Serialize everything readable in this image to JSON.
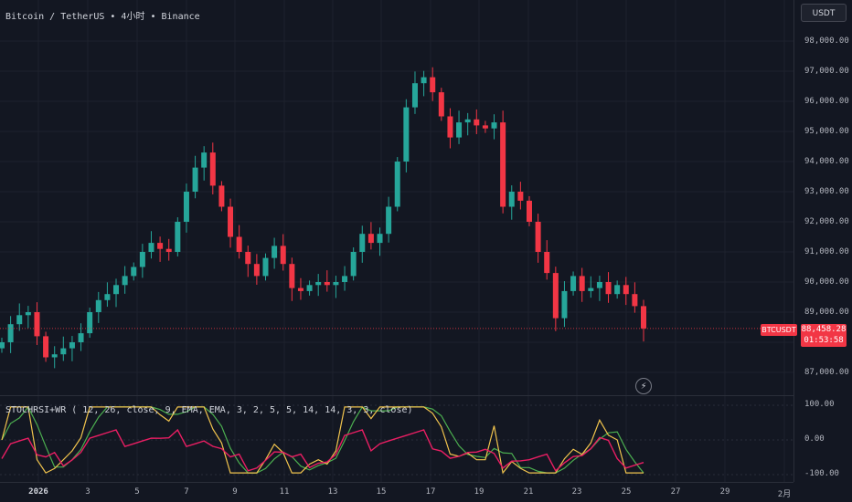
{
  "header": {
    "symbol": "Bitcoin / TetherUS • 4小时 • Binance"
  },
  "toolbar": {
    "currency_label": "USDT"
  },
  "price_axis": {
    "ticks": [
      "98,000.00",
      "97,000.00",
      "96,000.00",
      "95,000.00",
      "94,000.00",
      "93,000.00",
      "92,000.00",
      "91,000.00",
      "90,000.00",
      "89,000.00",
      "87,000.00"
    ],
    "last_price": "88,458.28",
    "countdown": "01:53:58",
    "symbol_badge": "BTCUSDT"
  },
  "oscillator": {
    "label": "STOCHRSI+WR ( 12, 26, close, 9, EMA, EMA, 3, 2, 5, 5, 14, 14, 3, 3, close)",
    "ticks": [
      "100.00",
      "0.00",
      "-100.00"
    ]
  },
  "time_axis": {
    "ticks": [
      "2026",
      "3",
      "5",
      "7",
      "9",
      "11",
      "13",
      "15",
      "17",
      "19",
      "21",
      "23",
      "25",
      "27",
      "29",
      "2月"
    ]
  },
  "colors": {
    "up": "#26a69a",
    "down": "#f23645",
    "background": "#131722",
    "k_line": "#f0c34d",
    "d_line": "#4caf50",
    "wr_line": "#e91e63"
  },
  "chart_data": {
    "type": "candlestick",
    "x_labels": [
      "2026",
      "3",
      "5",
      "7",
      "9",
      "11",
      "13",
      "15",
      "17",
      "19",
      "21",
      "23",
      "25",
      "27",
      "29",
      "2月"
    ],
    "ylim": [
      86600,
      98500
    ],
    "close_series": [
      88000,
      88600,
      88900,
      89000,
      88200,
      87500,
      87600,
      87800,
      88000,
      88300,
      89000,
      89400,
      89600,
      89900,
      90200,
      90500,
      91000,
      91300,
      91100,
      91000,
      92000,
      93000,
      93800,
      94300,
      93200,
      92500,
      91500,
      91000,
      90600,
      90200,
      90800,
      91200,
      90600,
      89800,
      89700,
      89900,
      90000,
      89900,
      90000,
      90200,
      91000,
      91600,
      91300,
      91600,
      92500,
      94000,
      95800,
      96600,
      96800,
      96300,
      95500,
      94800,
      95300,
      95400,
      95200,
      95100,
      95300,
      92500,
      93000,
      92700,
      92000,
      91000,
      90300,
      88800,
      89700,
      90200,
      89700,
      89800,
      90000,
      89600,
      89900,
      89600,
      89200,
      88458
    ],
    "stoch_rsi": {
      "ylim": [
        -100,
        100
      ]
    },
    "last_price": 88458.28
  }
}
